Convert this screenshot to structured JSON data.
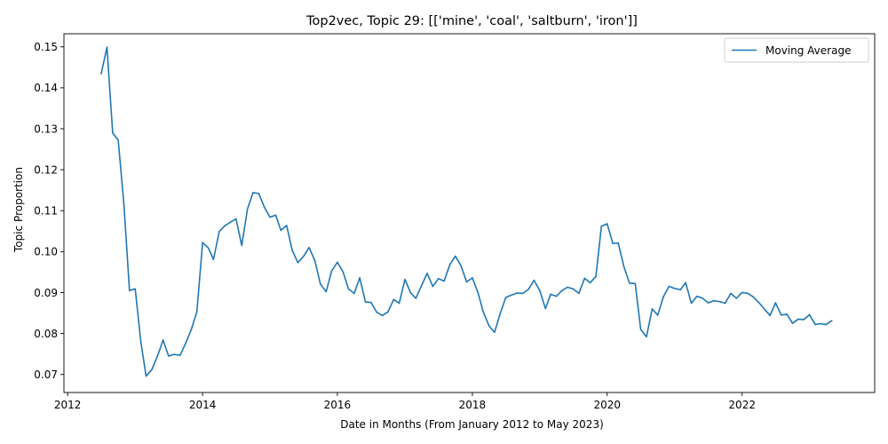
{
  "chart_data": {
    "type": "line",
    "title": "Top2vec, Topic 29: [['mine', 'coal', 'saltburn', 'iron']]",
    "xlabel": "Date in Months (From January 2012 to May 2023)",
    "ylabel": "Topic Proportion",
    "xlim": [
      "2011-12-12",
      "2023-12-20"
    ],
    "ylim": [
      0.0656,
      0.1532
    ],
    "x_ticks": [
      "2012",
      "2014",
      "2016",
      "2018",
      "2020",
      "2022"
    ],
    "y_ticks": [
      "0.07",
      "0.08",
      "0.09",
      "0.10",
      "0.11",
      "0.12",
      "0.13",
      "0.14",
      "0.15"
    ],
    "legend_position": "top-right",
    "color": "#1f77b4",
    "series": [
      {
        "name": "Moving Average",
        "x": [
          "2012-07",
          "2012-08",
          "2012-09",
          "2012-10",
          "2012-11",
          "2012-12",
          "2013-01",
          "2013-02",
          "2013-03",
          "2013-04",
          "2013-05",
          "2013-06",
          "2013-07",
          "2013-08",
          "2013-09",
          "2013-10",
          "2013-11",
          "2013-12",
          "2014-01",
          "2014-02",
          "2014-03",
          "2014-04",
          "2014-05",
          "2014-06",
          "2014-07",
          "2014-08",
          "2014-09",
          "2014-10",
          "2014-11",
          "2014-12",
          "2015-01",
          "2015-02",
          "2015-03",
          "2015-04",
          "2015-05",
          "2015-06",
          "2015-07",
          "2015-08",
          "2015-09",
          "2015-10",
          "2015-11",
          "2015-12",
          "2016-01",
          "2016-02",
          "2016-03",
          "2016-04",
          "2016-05",
          "2016-06",
          "2016-07",
          "2016-08",
          "2016-09",
          "2016-10",
          "2016-11",
          "2016-12",
          "2017-01",
          "2017-02",
          "2017-03",
          "2017-04",
          "2017-05",
          "2017-06",
          "2017-07",
          "2017-08",
          "2017-09",
          "2017-10",
          "2017-11",
          "2017-12",
          "2018-01",
          "2018-02",
          "2018-03",
          "2018-04",
          "2018-05",
          "2018-06",
          "2018-07",
          "2018-08",
          "2018-09",
          "2018-10",
          "2018-11",
          "2018-12",
          "2019-01",
          "2019-02",
          "2019-03",
          "2019-04",
          "2019-05",
          "2019-06",
          "2019-07",
          "2019-08",
          "2019-09",
          "2019-10",
          "2019-11",
          "2019-12",
          "2020-01",
          "2020-02",
          "2020-03",
          "2020-04",
          "2020-05",
          "2020-06",
          "2020-07",
          "2020-08",
          "2020-09",
          "2020-10",
          "2020-11",
          "2020-12",
          "2021-01",
          "2021-02",
          "2021-03",
          "2021-04",
          "2021-05",
          "2021-06",
          "2021-07",
          "2021-08",
          "2021-09",
          "2021-10",
          "2021-11",
          "2021-12",
          "2022-01",
          "2022-02",
          "2022-03",
          "2022-04",
          "2022-05",
          "2022-06",
          "2022-07",
          "2022-08",
          "2022-09",
          "2022-10",
          "2022-11",
          "2022-12",
          "2023-01",
          "2023-02",
          "2023-03",
          "2023-04",
          "2023-05"
        ],
        "y": [
          0.1435,
          0.1499,
          0.129,
          0.1272,
          0.1115,
          0.0905,
          0.0909,
          0.0778,
          0.0696,
          0.0712,
          0.0744,
          0.0784,
          0.0745,
          0.0749,
          0.0747,
          0.0776,
          0.081,
          0.0853,
          0.1022,
          0.1009,
          0.0981,
          0.1049,
          0.1063,
          0.1072,
          0.108,
          0.1015,
          0.1104,
          0.1144,
          0.1142,
          0.1109,
          0.1084,
          0.1089,
          0.1052,
          0.1064,
          0.1004,
          0.0973,
          0.0988,
          0.101,
          0.0978,
          0.0921,
          0.0902,
          0.0953,
          0.0974,
          0.095,
          0.0909,
          0.0898,
          0.0936,
          0.0877,
          0.0876,
          0.0852,
          0.0844,
          0.0853,
          0.0883,
          0.0874,
          0.0932,
          0.0899,
          0.0886,
          0.0917,
          0.0947,
          0.0915,
          0.0934,
          0.0928,
          0.0968,
          0.0989,
          0.0965,
          0.0926,
          0.0936,
          0.0899,
          0.0853,
          0.0819,
          0.0803,
          0.0849,
          0.0888,
          0.0894,
          0.0899,
          0.0898,
          0.0908,
          0.093,
          0.0905,
          0.0861,
          0.0896,
          0.0891,
          0.0905,
          0.0913,
          0.0909,
          0.0898,
          0.0935,
          0.0924,
          0.0939,
          0.1062,
          0.1068,
          0.102,
          0.1021,
          0.0963,
          0.0923,
          0.0922,
          0.081,
          0.0792,
          0.086,
          0.0845,
          0.089,
          0.0915,
          0.091,
          0.0907,
          0.0924,
          0.0874,
          0.0891,
          0.0886,
          0.0875,
          0.088,
          0.0878,
          0.0874,
          0.0898,
          0.0886,
          0.09,
          0.0898,
          0.089,
          0.0876,
          0.086,
          0.0844,
          0.0875,
          0.0845,
          0.0847,
          0.0825,
          0.0835,
          0.0834,
          0.0846,
          0.0822,
          0.0824,
          0.0822,
          0.0831
        ]
      }
    ]
  }
}
